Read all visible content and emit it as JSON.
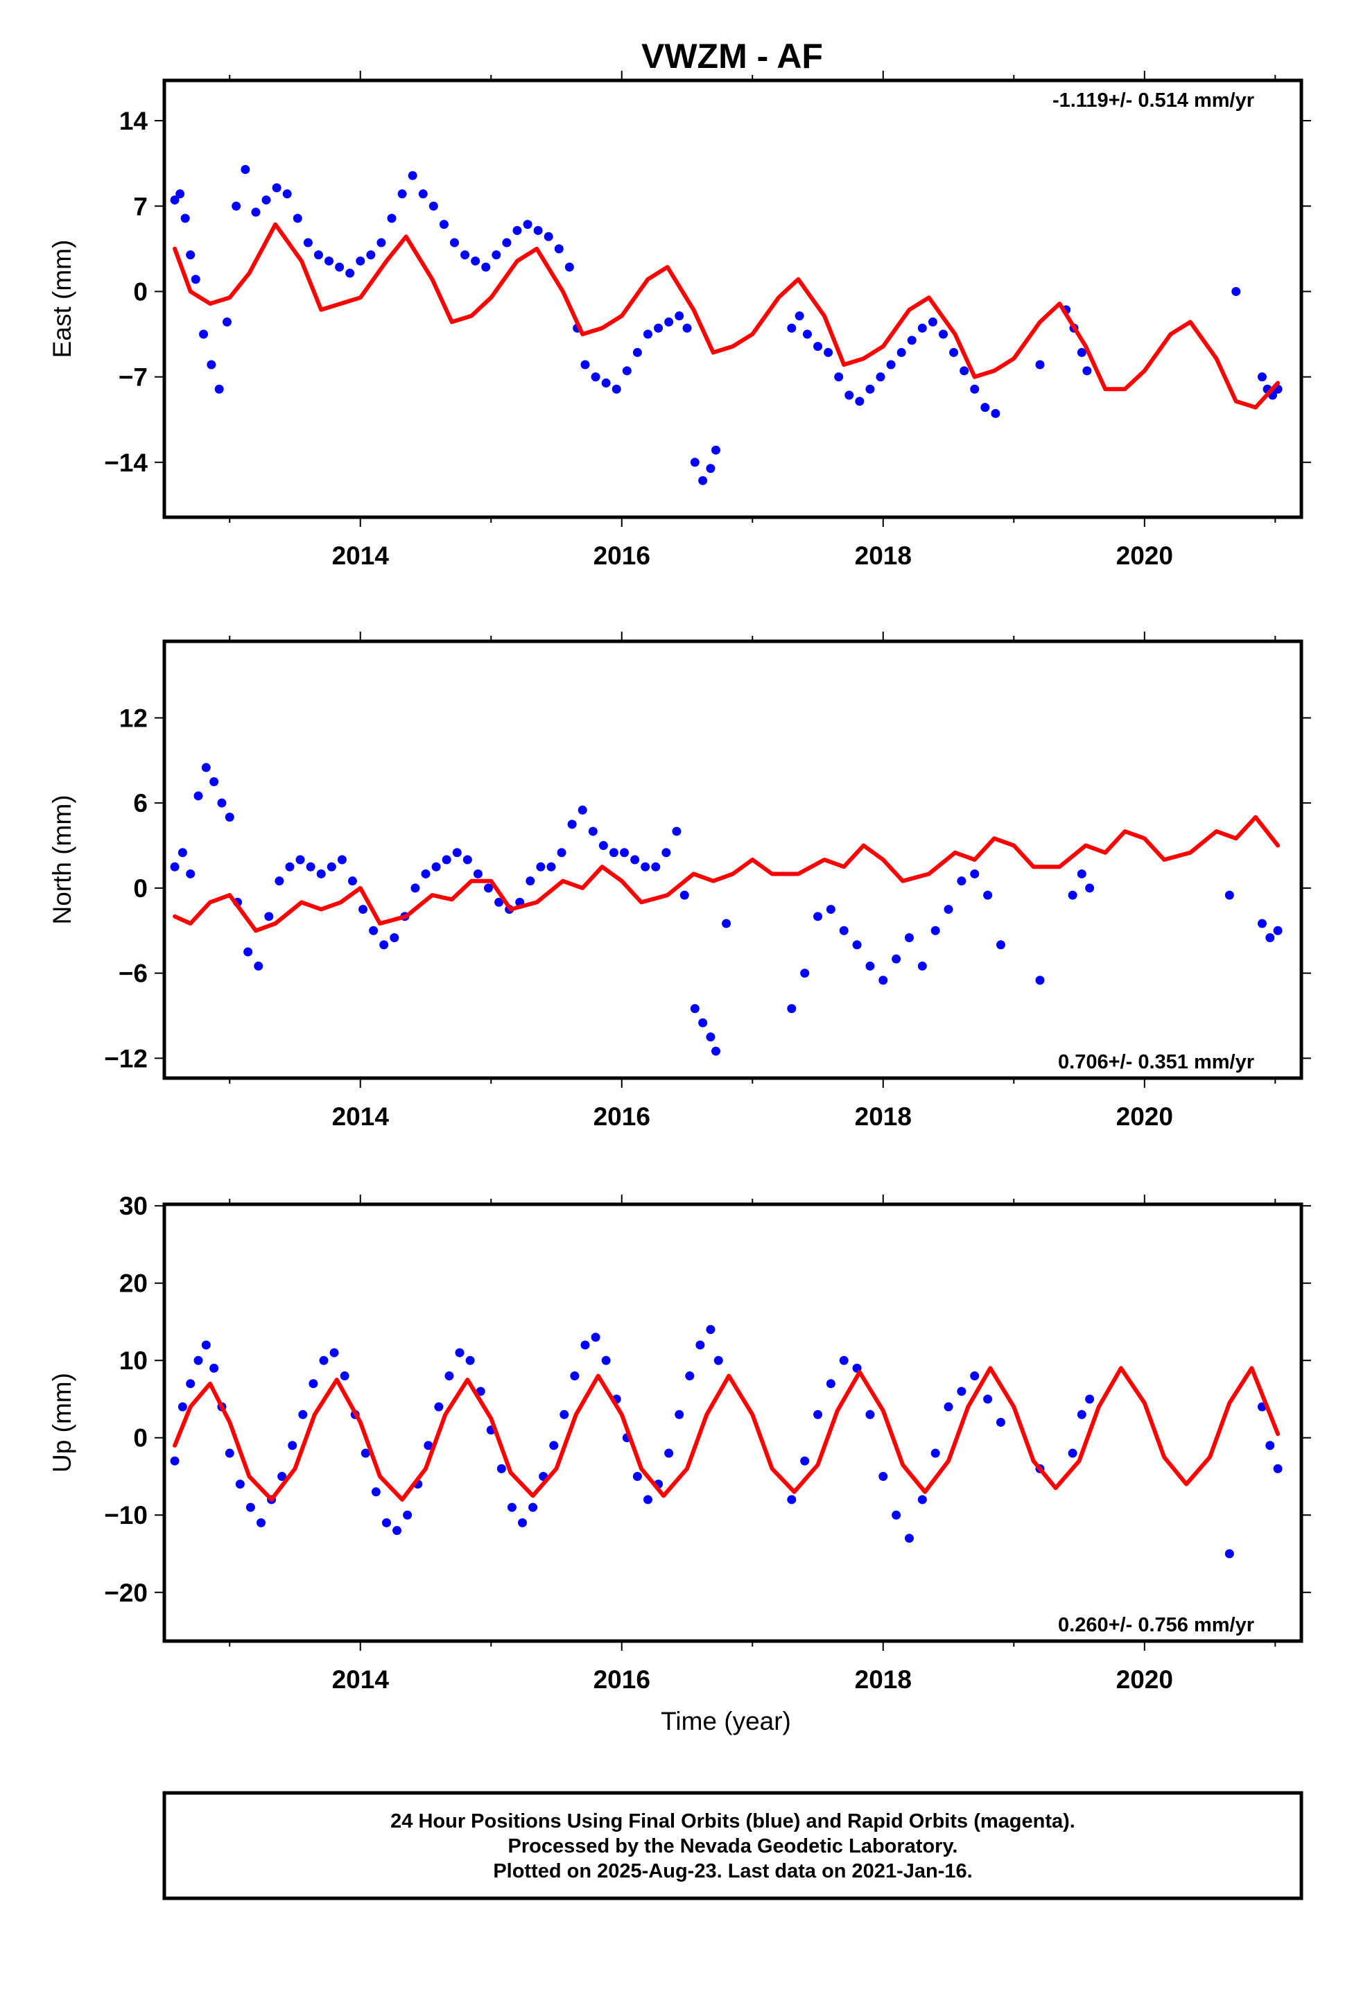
{
  "title": "VWZM - AF",
  "footer": {
    "lines": [
      "24 Hour Positions Using Final Orbits (blue) and Rapid Orbits (magenta).",
      "Processed by the Nevada Geodetic Laboratory.",
      "Plotted on 2025-Aug-23. Last data on 2021-Jan-16."
    ]
  },
  "colors": {
    "data": "#0000ff",
    "model": "#ff0000",
    "frame": "#000000"
  },
  "chart_data": [
    {
      "type": "scatter",
      "ylabel": "East (mm)",
      "xlabel": "",
      "xlim": [
        2012.5,
        2021.2
      ],
      "ylim": [
        -18.5,
        17.3
      ],
      "xticks": [
        2014,
        2016,
        2018,
        2020
      ],
      "xtick_labels": [
        "2014",
        "2016",
        "2018",
        "2020"
      ],
      "yticks": [
        14,
        7,
        0,
        -7,
        -14
      ],
      "ytick_labels": [
        "14",
        "7",
        "0",
        "−7",
        "−14"
      ],
      "rate": "-1.119+/- 0.514 mm/yr",
      "rate_position": "top-right",
      "series": [
        {
          "role": "observations",
          "x": [
            2012.58,
            2012.62,
            2012.66,
            2012.7,
            2012.74,
            2012.8,
            2012.86,
            2012.92,
            2012.98,
            2013.05,
            2013.12,
            2013.2,
            2013.28,
            2013.36,
            2013.44,
            2013.52,
            2013.6,
            2013.68,
            2013.76,
            2013.84,
            2013.92,
            2014.0,
            2014.08,
            2014.16,
            2014.24,
            2014.32,
            2014.4,
            2014.48,
            2014.56,
            2014.64,
            2014.72,
            2014.8,
            2014.88,
            2014.96,
            2015.04,
            2015.12,
            2015.2,
            2015.28,
            2015.36,
            2015.44,
            2015.52,
            2015.6,
            2015.66,
            2015.72,
            2015.8,
            2015.88,
            2015.96,
            2016.04,
            2016.12,
            2016.2,
            2016.28,
            2016.36,
            2016.44,
            2016.5,
            2016.56,
            2016.62,
            2016.68,
            2016.72,
            2017.3,
            2017.36,
            2017.42,
            2017.5,
            2017.58,
            2017.66,
            2017.74,
            2017.82,
            2017.9,
            2017.98,
            2018.06,
            2018.14,
            2018.22,
            2018.3,
            2018.38,
            2018.46,
            2018.54,
            2018.62,
            2018.7,
            2018.78,
            2018.86,
            2019.2,
            2019.4,
            2019.46,
            2019.52,
            2019.56,
            2020.7,
            2020.9,
            2020.94,
            2020.98,
            2021.02
          ],
          "y": [
            7.5,
            8.0,
            6.0,
            3.0,
            1.0,
            -3.5,
            -6.0,
            -8.0,
            -2.5,
            7.0,
            10.0,
            6.5,
            7.5,
            8.5,
            8.0,
            6.0,
            4.0,
            3.0,
            2.5,
            2.0,
            1.5,
            2.5,
            3.0,
            4.0,
            6.0,
            8.0,
            9.5,
            8.0,
            7.0,
            5.5,
            4.0,
            3.0,
            2.5,
            2.0,
            3.0,
            4.0,
            5.0,
            5.5,
            5.0,
            4.5,
            3.5,
            2.0,
            -3.0,
            -6.0,
            -7.0,
            -7.5,
            -8.0,
            -6.5,
            -5.0,
            -3.5,
            -3.0,
            -2.5,
            -2.0,
            -3.0,
            -14.0,
            -15.5,
            -14.5,
            -13.0,
            -3.0,
            -2.0,
            -3.5,
            -4.5,
            -5.0,
            -7.0,
            -8.5,
            -9.0,
            -8.0,
            -7.0,
            -6.0,
            -5.0,
            -4.0,
            -3.0,
            -2.5,
            -3.5,
            -5.0,
            -6.5,
            -8.0,
            -9.5,
            -10.0,
            -6.0,
            -1.5,
            -3.0,
            -5.0,
            -6.5,
            0.0,
            -7.0,
            -8.0,
            -8.5,
            -8.0
          ]
        },
        {
          "role": "model",
          "x": [
            2012.58,
            2012.7,
            2012.85,
            2013.0,
            2013.15,
            2013.35,
            2013.55,
            2013.7,
            2013.85,
            2014.0,
            2014.2,
            2014.35,
            2014.55,
            2014.7,
            2014.85,
            2015.0,
            2015.2,
            2015.35,
            2015.55,
            2015.7,
            2015.85,
            2016.0,
            2016.2,
            2016.35,
            2016.55,
            2016.7,
            2016.85,
            2017.0,
            2017.2,
            2017.35,
            2017.55,
            2017.7,
            2017.85,
            2018.0,
            2018.2,
            2018.35,
            2018.55,
            2018.7,
            2018.85,
            2019.0,
            2019.2,
            2019.35,
            2019.55,
            2019.7,
            2019.85,
            2020.0,
            2020.2,
            2020.35,
            2020.55,
            2020.7,
            2020.85,
            2021.02
          ],
          "y": [
            3.5,
            0.0,
            -1.0,
            -0.5,
            1.5,
            5.5,
            2.5,
            -1.5,
            -1.0,
            -0.5,
            2.5,
            4.5,
            1.0,
            -2.5,
            -2.0,
            -0.5,
            2.5,
            3.5,
            0.0,
            -3.5,
            -3.0,
            -2.0,
            1.0,
            2.0,
            -1.5,
            -5.0,
            -4.5,
            -3.5,
            -0.5,
            1.0,
            -2.0,
            -6.0,
            -5.5,
            -4.5,
            -1.5,
            -0.5,
            -3.5,
            -7.0,
            -6.5,
            -5.5,
            -2.5,
            -1.0,
            -4.5,
            -8.0,
            -8.0,
            -6.5,
            -3.5,
            -2.5,
            -5.5,
            -9.0,
            -9.5,
            -7.5
          ]
        }
      ]
    },
    {
      "type": "scatter",
      "ylabel": "North (mm)",
      "xlabel": "",
      "xlim": [
        2012.5,
        2021.2
      ],
      "ylim": [
        -13.4,
        17.4
      ],
      "xticks": [
        2014,
        2016,
        2018,
        2020
      ],
      "xtick_labels": [
        "2014",
        "2016",
        "2018",
        "2020"
      ],
      "yticks": [
        12,
        6,
        0,
        -6,
        -12
      ],
      "ytick_labels": [
        "12",
        "6",
        "0",
        "−6",
        "−12"
      ],
      "rate": "0.706+/- 0.351 mm/yr",
      "rate_position": "bottom-right",
      "series": [
        {
          "role": "observations",
          "x": [
            2012.58,
            2012.64,
            2012.7,
            2012.76,
            2012.82,
            2012.88,
            2012.94,
            2013.0,
            2013.06,
            2013.14,
            2013.22,
            2013.3,
            2013.38,
            2013.46,
            2013.54,
            2013.62,
            2013.7,
            2013.78,
            2013.86,
            2013.94,
            2014.02,
            2014.1,
            2014.18,
            2014.26,
            2014.34,
            2014.42,
            2014.5,
            2014.58,
            2014.66,
            2014.74,
            2014.82,
            2014.9,
            2014.98,
            2015.06,
            2015.14,
            2015.22,
            2015.3,
            2015.38,
            2015.46,
            2015.54,
            2015.62,
            2015.7,
            2015.78,
            2015.86,
            2015.94,
            2016.02,
            2016.1,
            2016.18,
            2016.26,
            2016.34,
            2016.42,
            2016.48,
            2016.56,
            2016.62,
            2016.68,
            2016.72,
            2016.8,
            2017.3,
            2017.4,
            2017.5,
            2017.6,
            2017.7,
            2017.8,
            2017.9,
            2018.0,
            2018.1,
            2018.2,
            2018.3,
            2018.4,
            2018.5,
            2018.6,
            2018.7,
            2018.8,
            2018.9,
            2019.2,
            2019.45,
            2019.52,
            2019.58,
            2020.65,
            2020.9,
            2020.96,
            2021.02
          ],
          "y": [
            1.5,
            2.5,
            1.0,
            6.5,
            8.5,
            7.5,
            6.0,
            5.0,
            -1.0,
            -4.5,
            -5.5,
            -2.0,
            0.5,
            1.5,
            2.0,
            1.5,
            1.0,
            1.5,
            2.0,
            0.5,
            -1.5,
            -3.0,
            -4.0,
            -3.5,
            -2.0,
            0.0,
            1.0,
            1.5,
            2.0,
            2.5,
            2.0,
            1.0,
            0.0,
            -1.0,
            -1.5,
            -1.0,
            0.5,
            1.5,
            1.5,
            2.5,
            4.5,
            5.5,
            4.0,
            3.0,
            2.5,
            2.5,
            2.0,
            1.5,
            1.5,
            2.5,
            4.0,
            -0.5,
            -8.5,
            -9.5,
            -10.5,
            -11.5,
            -2.5,
            -8.5,
            -6.0,
            -2.0,
            -1.5,
            -3.0,
            -4.0,
            -5.5,
            -6.5,
            -5.0,
            -3.5,
            -5.5,
            -3.0,
            -1.5,
            0.5,
            1.0,
            -0.5,
            -4.0,
            -6.5,
            -0.5,
            1.0,
            0.0,
            -0.5,
            -2.5,
            -3.5,
            -3.0
          ]
        },
        {
          "role": "model",
          "x": [
            2012.58,
            2012.7,
            2012.85,
            2013.0,
            2013.2,
            2013.35,
            2013.55,
            2013.7,
            2013.85,
            2014.0,
            2014.15,
            2014.35,
            2014.55,
            2014.7,
            2014.85,
            2015.0,
            2015.15,
            2015.35,
            2015.55,
            2015.7,
            2015.85,
            2016.0,
            2016.15,
            2016.35,
            2016.55,
            2016.7,
            2016.85,
            2017.0,
            2017.15,
            2017.35,
            2017.55,
            2017.7,
            2017.85,
            2018.0,
            2018.15,
            2018.35,
            2018.55,
            2018.7,
            2018.85,
            2019.0,
            2019.15,
            2019.35,
            2019.55,
            2019.7,
            2019.85,
            2020.0,
            2020.15,
            2020.35,
            2020.55,
            2020.7,
            2020.85,
            2021.02
          ],
          "y": [
            -2.0,
            -2.5,
            -1.0,
            -0.5,
            -3.0,
            -2.5,
            -1.0,
            -1.5,
            -1.0,
            0.0,
            -2.5,
            -2.0,
            -0.5,
            -0.8,
            0.5,
            0.5,
            -1.5,
            -1.0,
            0.5,
            0.0,
            1.5,
            0.5,
            -1.0,
            -0.5,
            1.0,
            0.5,
            1.0,
            2.0,
            1.0,
            1.0,
            2.0,
            1.5,
            3.0,
            2.0,
            0.5,
            1.0,
            2.5,
            2.0,
            3.5,
            3.0,
            1.5,
            1.5,
            3.0,
            2.5,
            4.0,
            3.5,
            2.0,
            2.5,
            4.0,
            3.5,
            5.0,
            3.0
          ]
        }
      ]
    },
    {
      "type": "scatter",
      "ylabel": "Up (mm)",
      "xlabel": "Time (year)",
      "xlim": [
        2012.5,
        2021.2
      ],
      "ylim": [
        -26.3,
        30.2
      ],
      "xticks": [
        2014,
        2016,
        2018,
        2020
      ],
      "xtick_labels": [
        "2014",
        "2016",
        "2018",
        "2020"
      ],
      "yticks": [
        30,
        20,
        10,
        0,
        -10,
        -20
      ],
      "ytick_labels": [
        "30",
        "20",
        "10",
        "0",
        "−10",
        "−20"
      ],
      "rate": "0.260+/- 0.756 mm/yr",
      "rate_position": "bottom-right",
      "series": [
        {
          "role": "observations",
          "x": [
            2012.58,
            2012.64,
            2012.7,
            2012.76,
            2012.82,
            2012.88,
            2012.94,
            2013.0,
            2013.08,
            2013.16,
            2013.24,
            2013.32,
            2013.4,
            2013.48,
            2013.56,
            2013.64,
            2013.72,
            2013.8,
            2013.88,
            2013.96,
            2014.04,
            2014.12,
            2014.2,
            2014.28,
            2014.36,
            2014.44,
            2014.52,
            2014.6,
            2014.68,
            2014.76,
            2014.84,
            2014.92,
            2015.0,
            2015.08,
            2015.16,
            2015.24,
            2015.32,
            2015.4,
            2015.48,
            2015.56,
            2015.64,
            2015.72,
            2015.8,
            2015.88,
            2015.96,
            2016.04,
            2016.12,
            2016.2,
            2016.28,
            2016.36,
            2016.44,
            2016.52,
            2016.6,
            2016.68,
            2016.74,
            2017.3,
            2017.4,
            2017.5,
            2017.6,
            2017.7,
            2017.8,
            2017.9,
            2018.0,
            2018.1,
            2018.2,
            2018.3,
            2018.4,
            2018.5,
            2018.6,
            2018.7,
            2018.8,
            2018.9,
            2019.2,
            2019.45,
            2019.52,
            2019.58,
            2020.65,
            2020.9,
            2020.96,
            2021.02
          ],
          "y": [
            -3.0,
            4.0,
            7.0,
            10.0,
            12.0,
            9.0,
            4.0,
            -2.0,
            -6.0,
            -9.0,
            -11.0,
            -8.0,
            -5.0,
            -1.0,
            3.0,
            7.0,
            10.0,
            11.0,
            8.0,
            3.0,
            -2.0,
            -7.0,
            -11.0,
            -12.0,
            -10.0,
            -6.0,
            -1.0,
            4.0,
            8.0,
            11.0,
            10.0,
            6.0,
            1.0,
            -4.0,
            -9.0,
            -11.0,
            -9.0,
            -5.0,
            -1.0,
            3.0,
            8.0,
            12.0,
            13.0,
            10.0,
            5.0,
            0.0,
            -5.0,
            -8.0,
            -6.0,
            -2.0,
            3.0,
            8.0,
            12.0,
            14.0,
            10.0,
            -8.0,
            -3.0,
            3.0,
            7.0,
            10.0,
            9.0,
            3.0,
            -5.0,
            -10.0,
            -13.0,
            -8.0,
            -2.0,
            4.0,
            6.0,
            8.0,
            5.0,
            2.0,
            -4.0,
            -2.0,
            3.0,
            5.0,
            -15.0,
            4.0,
            -1.0,
            -4.0
          ]
        },
        {
          "role": "model",
          "x": [
            2012.58,
            2012.7,
            2012.85,
            2013.0,
            2013.15,
            2013.32,
            2013.5,
            2013.65,
            2013.82,
            2014.0,
            2014.15,
            2014.32,
            2014.5,
            2014.65,
            2014.82,
            2015.0,
            2015.15,
            2015.32,
            2015.5,
            2015.65,
            2015.82,
            2016.0,
            2016.15,
            2016.32,
            2016.5,
            2016.65,
            2016.82,
            2017.0,
            2017.15,
            2017.32,
            2017.5,
            2017.65,
            2017.82,
            2018.0,
            2018.15,
            2018.32,
            2018.5,
            2018.65,
            2018.82,
            2019.0,
            2019.15,
            2019.32,
            2019.5,
            2019.65,
            2019.82,
            2020.0,
            2020.15,
            2020.32,
            2020.5,
            2020.65,
            2020.82,
            2021.02
          ],
          "y": [
            -1.0,
            4.0,
            7.0,
            2.0,
            -5.0,
            -8.0,
            -4.0,
            3.0,
            7.5,
            2.0,
            -5.0,
            -8.0,
            -4.0,
            3.0,
            7.5,
            2.5,
            -4.5,
            -7.5,
            -4.0,
            3.0,
            8.0,
            3.0,
            -4.0,
            -7.5,
            -4.0,
            3.0,
            8.0,
            3.0,
            -4.0,
            -7.0,
            -3.5,
            3.5,
            8.5,
            3.5,
            -3.5,
            -7.0,
            -3.0,
            4.0,
            9.0,
            4.0,
            -3.0,
            -6.5,
            -3.0,
            4.0,
            9.0,
            4.5,
            -2.5,
            -6.0,
            -2.5,
            4.5,
            9.0,
            0.5
          ]
        }
      ]
    }
  ]
}
